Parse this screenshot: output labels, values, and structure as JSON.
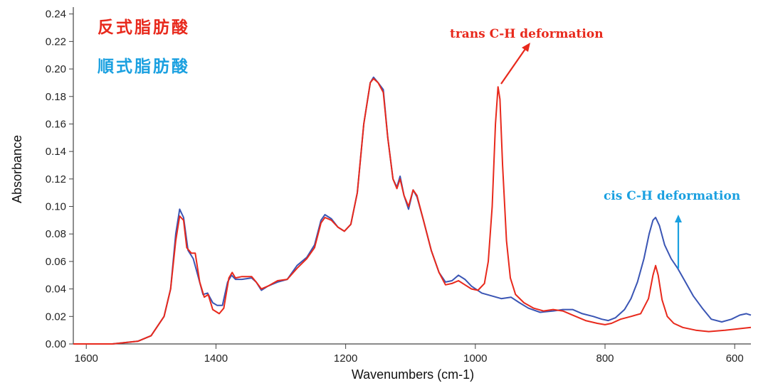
{
  "colors": {
    "trans": "#e8291c",
    "cis": "#3a55b4",
    "cis_label": "#1aa0e0",
    "axis": "#444444"
  },
  "chart_data": {
    "type": "line",
    "xlabel": "Wavenumbers (cm-1)",
    "ylabel": "Absorbance",
    "xlim": [
      1620,
      575
    ],
    "ylim": [
      0,
      0.245
    ],
    "x_reversed": true,
    "x_ticks": [
      1600,
      1400,
      1200,
      1000,
      800,
      600
    ],
    "y_ticks": [
      "0.00",
      "0.02",
      "0.04",
      "0.06",
      "0.08",
      "0.10",
      "0.12",
      "0.14",
      "0.16",
      "0.18",
      "0.20",
      "0.22",
      "0.24"
    ],
    "legend": [
      {
        "name": "反式脂肪酸",
        "color": "#e8291c"
      },
      {
        "name": "順式脂肪酸",
        "color": "#1aa0e0"
      }
    ],
    "annotations": [
      {
        "text": "trans C-H deformation",
        "series": "trans"
      },
      {
        "text": "cis C-H deformation",
        "series": "cis"
      }
    ],
    "series": [
      {
        "name": "反式脂肪酸",
        "points": [
          [
            1620,
            0.0
          ],
          [
            1560,
            0.0
          ],
          [
            1520,
            0.002
          ],
          [
            1500,
            0.006
          ],
          [
            1480,
            0.02
          ],
          [
            1470,
            0.04
          ],
          [
            1462,
            0.075
          ],
          [
            1456,
            0.093
          ],
          [
            1450,
            0.09
          ],
          [
            1445,
            0.07
          ],
          [
            1438,
            0.066
          ],
          [
            1432,
            0.066
          ],
          [
            1425,
            0.045
          ],
          [
            1418,
            0.034
          ],
          [
            1412,
            0.036
          ],
          [
            1405,
            0.025
          ],
          [
            1395,
            0.022
          ],
          [
            1388,
            0.026
          ],
          [
            1380,
            0.048
          ],
          [
            1375,
            0.052
          ],
          [
            1370,
            0.048
          ],
          [
            1360,
            0.049
          ],
          [
            1345,
            0.049
          ],
          [
            1338,
            0.045
          ],
          [
            1330,
            0.04
          ],
          [
            1320,
            0.042
          ],
          [
            1305,
            0.046
          ],
          [
            1290,
            0.047
          ],
          [
            1275,
            0.055
          ],
          [
            1260,
            0.062
          ],
          [
            1248,
            0.07
          ],
          [
            1238,
            0.088
          ],
          [
            1232,
            0.092
          ],
          [
            1222,
            0.09
          ],
          [
            1212,
            0.085
          ],
          [
            1202,
            0.082
          ],
          [
            1192,
            0.087
          ],
          [
            1182,
            0.11
          ],
          [
            1172,
            0.16
          ],
          [
            1162,
            0.19
          ],
          [
            1157,
            0.193
          ],
          [
            1150,
            0.19
          ],
          [
            1142,
            0.183
          ],
          [
            1135,
            0.15
          ],
          [
            1127,
            0.12
          ],
          [
            1121,
            0.113
          ],
          [
            1116,
            0.12
          ],
          [
            1110,
            0.108
          ],
          [
            1103,
            0.1
          ],
          [
            1096,
            0.112
          ],
          [
            1090,
            0.108
          ],
          [
            1080,
            0.09
          ],
          [
            1068,
            0.068
          ],
          [
            1056,
            0.052
          ],
          [
            1046,
            0.043
          ],
          [
            1036,
            0.044
          ],
          [
            1026,
            0.046
          ],
          [
            1016,
            0.043
          ],
          [
            1006,
            0.04
          ],
          [
            996,
            0.039
          ],
          [
            986,
            0.044
          ],
          [
            980,
            0.06
          ],
          [
            974,
            0.1
          ],
          [
            969,
            0.16
          ],
          [
            965,
            0.187
          ],
          [
            962,
            0.178
          ],
          [
            958,
            0.13
          ],
          [
            952,
            0.075
          ],
          [
            946,
            0.048
          ],
          [
            938,
            0.036
          ],
          [
            925,
            0.03
          ],
          [
            910,
            0.026
          ],
          [
            895,
            0.024
          ],
          [
            880,
            0.025
          ],
          [
            865,
            0.024
          ],
          [
            850,
            0.021
          ],
          [
            830,
            0.017
          ],
          [
            812,
            0.015
          ],
          [
            800,
            0.014
          ],
          [
            790,
            0.015
          ],
          [
            776,
            0.018
          ],
          [
            760,
            0.02
          ],
          [
            745,
            0.022
          ],
          [
            733,
            0.033
          ],
          [
            726,
            0.05
          ],
          [
            722,
            0.057
          ],
          [
            718,
            0.05
          ],
          [
            712,
            0.032
          ],
          [
            704,
            0.02
          ],
          [
            694,
            0.015
          ],
          [
            680,
            0.012
          ],
          [
            660,
            0.01
          ],
          [
            640,
            0.009
          ],
          [
            615,
            0.01
          ],
          [
            595,
            0.011
          ],
          [
            575,
            0.012
          ]
        ]
      },
      {
        "name": "順式脂肪酸",
        "points": [
          [
            1620,
            0.0
          ],
          [
            1560,
            0.0
          ],
          [
            1520,
            0.002
          ],
          [
            1500,
            0.006
          ],
          [
            1480,
            0.02
          ],
          [
            1470,
            0.04
          ],
          [
            1462,
            0.08
          ],
          [
            1456,
            0.098
          ],
          [
            1450,
            0.092
          ],
          [
            1443,
            0.068
          ],
          [
            1435,
            0.062
          ],
          [
            1428,
            0.05
          ],
          [
            1420,
            0.036
          ],
          [
            1413,
            0.037
          ],
          [
            1405,
            0.03
          ],
          [
            1398,
            0.028
          ],
          [
            1390,
            0.028
          ],
          [
            1382,
            0.045
          ],
          [
            1376,
            0.05
          ],
          [
            1370,
            0.047
          ],
          [
            1360,
            0.047
          ],
          [
            1345,
            0.048
          ],
          [
            1338,
            0.045
          ],
          [
            1330,
            0.039
          ],
          [
            1320,
            0.042
          ],
          [
            1305,
            0.045
          ],
          [
            1290,
            0.047
          ],
          [
            1275,
            0.057
          ],
          [
            1260,
            0.063
          ],
          [
            1248,
            0.072
          ],
          [
            1238,
            0.09
          ],
          [
            1232,
            0.094
          ],
          [
            1222,
            0.091
          ],
          [
            1212,
            0.085
          ],
          [
            1202,
            0.082
          ],
          [
            1192,
            0.087
          ],
          [
            1182,
            0.11
          ],
          [
            1172,
            0.16
          ],
          [
            1162,
            0.19
          ],
          [
            1157,
            0.194
          ],
          [
            1150,
            0.19
          ],
          [
            1142,
            0.185
          ],
          [
            1135,
            0.15
          ],
          [
            1127,
            0.12
          ],
          [
            1121,
            0.114
          ],
          [
            1116,
            0.122
          ],
          [
            1110,
            0.108
          ],
          [
            1103,
            0.098
          ],
          [
            1096,
            0.112
          ],
          [
            1090,
            0.107
          ],
          [
            1080,
            0.09
          ],
          [
            1068,
            0.068
          ],
          [
            1056,
            0.052
          ],
          [
            1046,
            0.045
          ],
          [
            1036,
            0.046
          ],
          [
            1026,
            0.05
          ],
          [
            1016,
            0.047
          ],
          [
            1006,
            0.042
          ],
          [
            990,
            0.037
          ],
          [
            975,
            0.035
          ],
          [
            960,
            0.033
          ],
          [
            945,
            0.034
          ],
          [
            932,
            0.03
          ],
          [
            918,
            0.026
          ],
          [
            900,
            0.023
          ],
          [
            880,
            0.024
          ],
          [
            865,
            0.025
          ],
          [
            850,
            0.025
          ],
          [
            835,
            0.022
          ],
          [
            818,
            0.02
          ],
          [
            805,
            0.018
          ],
          [
            795,
            0.017
          ],
          [
            784,
            0.019
          ],
          [
            770,
            0.025
          ],
          [
            760,
            0.033
          ],
          [
            750,
            0.045
          ],
          [
            740,
            0.062
          ],
          [
            732,
            0.08
          ],
          [
            726,
            0.09
          ],
          [
            722,
            0.092
          ],
          [
            716,
            0.086
          ],
          [
            708,
            0.072
          ],
          [
            698,
            0.062
          ],
          [
            688,
            0.055
          ],
          [
            676,
            0.045
          ],
          [
            664,
            0.035
          ],
          [
            650,
            0.026
          ],
          [
            636,
            0.018
          ],
          [
            620,
            0.016
          ],
          [
            605,
            0.018
          ],
          [
            592,
            0.021
          ],
          [
            582,
            0.022
          ],
          [
            575,
            0.021
          ]
        ]
      }
    ]
  }
}
